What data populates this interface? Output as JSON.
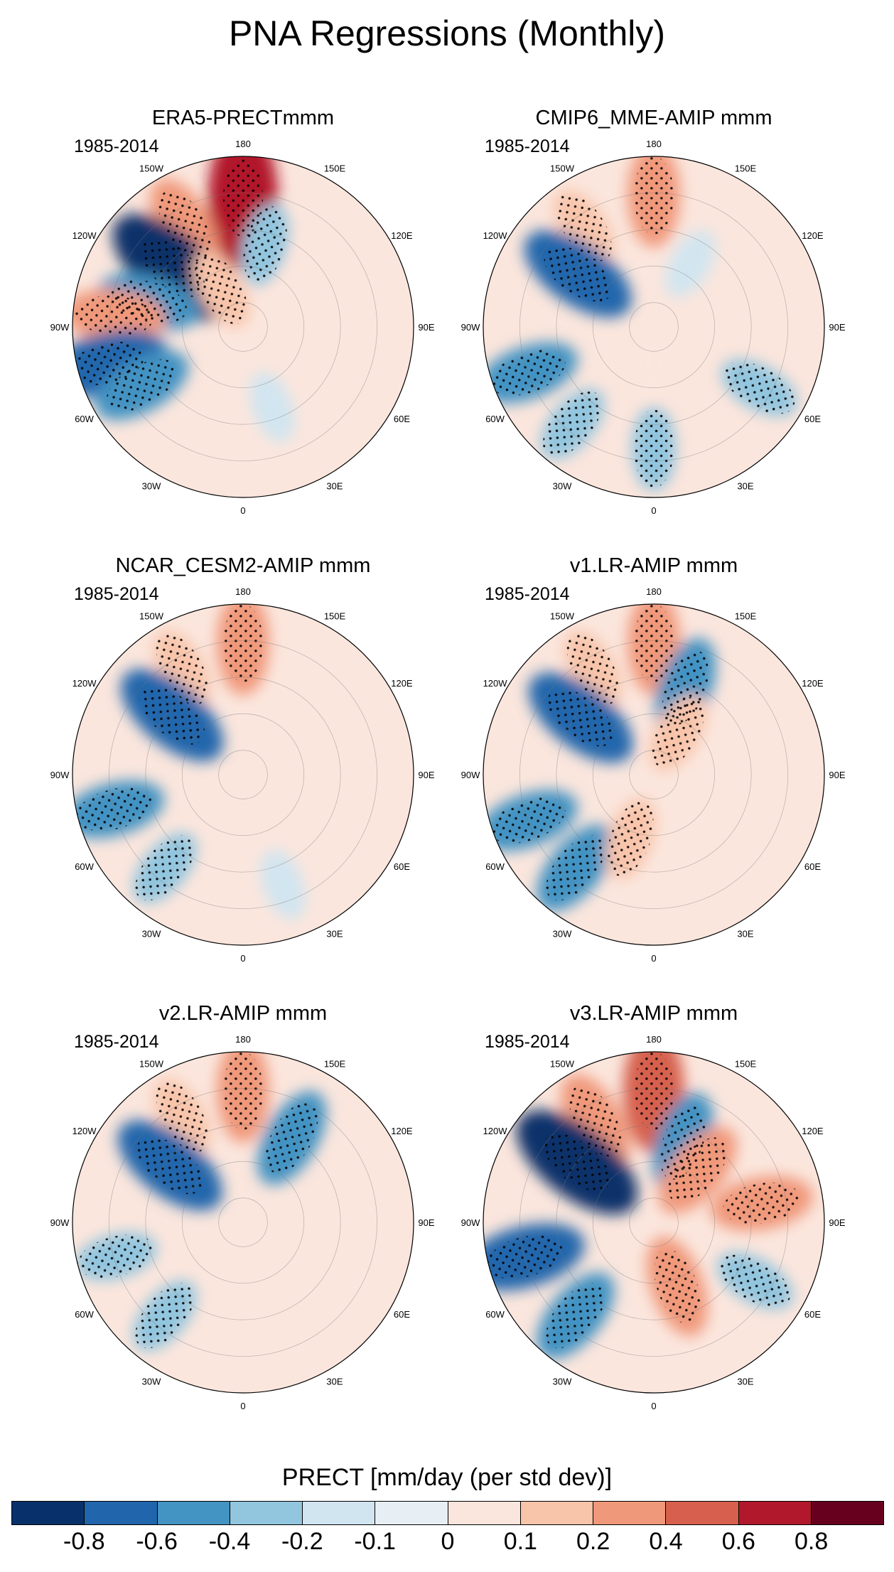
{
  "page_title": "PNA Regressions (Monthly)",
  "chart_data": [
    {
      "type": "heatmap",
      "projection": "north-polar-stereographic",
      "title": "ERA5-PRECTmmm",
      "period": "1985-2014",
      "lon_labels": [
        "180",
        "150E",
        "120E",
        "90E",
        "60E",
        "30E",
        "0",
        "30W",
        "60W",
        "90W",
        "120W",
        "150W"
      ],
      "anomalies": [
        {
          "lon": 180,
          "lat": 37,
          "value": 0.8
        },
        {
          "lon": -150,
          "lat": 42,
          "value": 0.4
        },
        {
          "lon": -130,
          "lat": 52,
          "value": -0.8
        },
        {
          "lon": -105,
          "lat": 50,
          "value": -0.4
        },
        {
          "lon": 165,
          "lat": 55,
          "value": -0.2
        },
        {
          "lon": -95,
          "lat": 37,
          "value": 0.4
        },
        {
          "lon": -75,
          "lat": 32,
          "value": -0.6
        },
        {
          "lon": -60,
          "lat": 42,
          "value": -0.4
        },
        {
          "lon": -150,
          "lat": 72,
          "value": 0.2
        },
        {
          "lon": 130,
          "lat": 55,
          "value": 0.1
        },
        {
          "lon": 20,
          "lat": 55,
          "value": -0.1
        }
      ]
    },
    {
      "type": "heatmap",
      "projection": "north-polar-stereographic",
      "title": "CMIP6_MME-AMIP  mmm",
      "period": "1985-2014",
      "lon_labels": [
        "180",
        "150E",
        "120E",
        "90E",
        "60E",
        "30E",
        "0",
        "30W",
        "60W",
        "90W",
        "120W",
        "150W"
      ],
      "anomalies": [
        {
          "lon": 180,
          "lat": 36,
          "value": 0.4
        },
        {
          "lon": -145,
          "lat": 40,
          "value": 0.2
        },
        {
          "lon": -125,
          "lat": 52,
          "value": -0.6
        },
        {
          "lon": -70,
          "lat": 35,
          "value": -0.4
        },
        {
          "lon": -40,
          "lat": 38,
          "value": -0.2
        },
        {
          "lon": 0,
          "lat": 40,
          "value": -0.2
        },
        {
          "lon": 60,
          "lat": 40,
          "value": -0.2
        },
        {
          "lon": 150,
          "lat": 60,
          "value": -0.1
        },
        {
          "lon": 0,
          "lat": 75,
          "value": 0.1
        }
      ]
    },
    {
      "type": "heatmap",
      "projection": "north-polar-stereographic",
      "title": "NCAR_CESM2-AMIP  mmm",
      "period": "1985-2014",
      "lon_labels": [
        "180",
        "150E",
        "120E",
        "90E",
        "60E",
        "30E",
        "0",
        "30W",
        "60W",
        "90W",
        "120W",
        "150W"
      ],
      "anomalies": [
        {
          "lon": 180,
          "lat": 36,
          "value": 0.4
        },
        {
          "lon": -150,
          "lat": 40,
          "value": 0.2
        },
        {
          "lon": -130,
          "lat": 52,
          "value": -0.6
        },
        {
          "lon": -75,
          "lat": 35,
          "value": -0.4
        },
        {
          "lon": -40,
          "lat": 40,
          "value": -0.2
        },
        {
          "lon": 20,
          "lat": 42,
          "value": -0.1
        },
        {
          "lon": 0,
          "lat": 72,
          "value": 0.1
        }
      ]
    },
    {
      "type": "heatmap",
      "projection": "north-polar-stereographic",
      "title": "v1.LR-AMIP  mmm",
      "period": "1985-2014",
      "lon_labels": [
        "180",
        "150E",
        "120E",
        "90E",
        "60E",
        "30E",
        "0",
        "30W",
        "60W",
        "90W",
        "120W",
        "150W"
      ],
      "anomalies": [
        {
          "lon": 180,
          "lat": 36,
          "value": 0.4
        },
        {
          "lon": -150,
          "lat": 40,
          "value": 0.2
        },
        {
          "lon": -128,
          "lat": 52,
          "value": -0.6
        },
        {
          "lon": 160,
          "lat": 52,
          "value": -0.4
        },
        {
          "lon": -70,
          "lat": 35,
          "value": -0.4
        },
        {
          "lon": -40,
          "lat": 40,
          "value": -0.4
        },
        {
          "lon": 150,
          "lat": 70,
          "value": 0.2
        },
        {
          "lon": -20,
          "lat": 62,
          "value": 0.2
        }
      ]
    },
    {
      "type": "heatmap",
      "projection": "north-polar-stereographic",
      "title": "v2.LR-AMIP  mmm",
      "period": "1985-2014",
      "lon_labels": [
        "180",
        "150E",
        "120E",
        "90E",
        "60E",
        "30E",
        "0",
        "30W",
        "60W",
        "90W",
        "120W",
        "150W"
      ],
      "anomalies": [
        {
          "lon": 180,
          "lat": 36,
          "value": 0.4
        },
        {
          "lon": -150,
          "lat": 40,
          "value": 0.2
        },
        {
          "lon": -128,
          "lat": 52,
          "value": -0.6
        },
        {
          "lon": 150,
          "lat": 50,
          "value": -0.4
        },
        {
          "lon": -75,
          "lat": 36,
          "value": -0.2
        },
        {
          "lon": -40,
          "lat": 40,
          "value": -0.2
        },
        {
          "lon": 0,
          "lat": 72,
          "value": 0.1
        }
      ]
    },
    {
      "type": "heatmap",
      "projection": "north-polar-stereographic",
      "title": "v3.LR-AMIP  mmm",
      "period": "1985-2014",
      "lon_labels": [
        "180",
        "150E",
        "120E",
        "90E",
        "60E",
        "30E",
        "0",
        "30W",
        "60W",
        "90W",
        "120W",
        "150W"
      ],
      "anomalies": [
        {
          "lon": 180,
          "lat": 36,
          "value": 0.6
        },
        {
          "lon": -150,
          "lat": 42,
          "value": 0.4
        },
        {
          "lon": -128,
          "lat": 50,
          "value": -0.8
        },
        {
          "lon": 160,
          "lat": 55,
          "value": -0.4
        },
        {
          "lon": 140,
          "lat": 62,
          "value": 0.4
        },
        {
          "lon": 100,
          "lat": 45,
          "value": 0.4
        },
        {
          "lon": -75,
          "lat": 35,
          "value": -0.6
        },
        {
          "lon": -40,
          "lat": 40,
          "value": -0.4
        },
        {
          "lon": 60,
          "lat": 42,
          "value": -0.2
        },
        {
          "lon": 20,
          "lat": 62,
          "value": 0.4
        }
      ]
    }
  ],
  "colorbar": {
    "title": "PRECT [mm/day (per std dev)]",
    "colors": [
      "#08306b",
      "#2166ac",
      "#4393c3",
      "#92c5de",
      "#d1e5f0",
      "#e7eff5",
      "#fbe6dd",
      "#f8c4aa",
      "#f0987a",
      "#d6604d",
      "#b2182b",
      "#67001f"
    ],
    "tick_labels": [
      "-0.8",
      "-0.6",
      "-0.4",
      "-0.2",
      "-0.1",
      "0",
      "0.1",
      "0.2",
      "0.4",
      "0.6",
      "0.8"
    ]
  }
}
